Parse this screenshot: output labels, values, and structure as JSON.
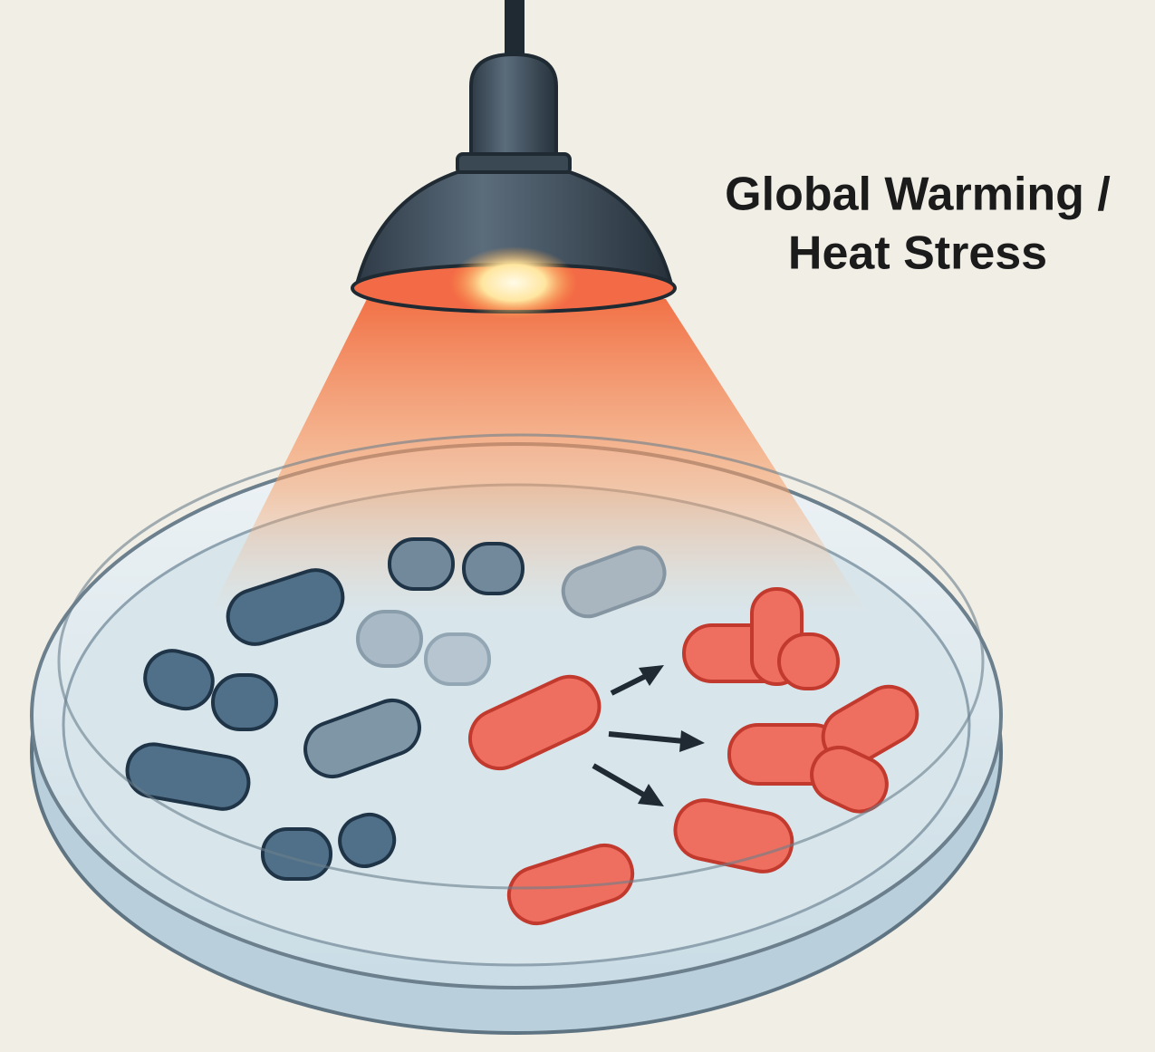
{
  "label": {
    "lines": [
      "Global Warming /",
      "Heat Stress"
    ]
  }
}
